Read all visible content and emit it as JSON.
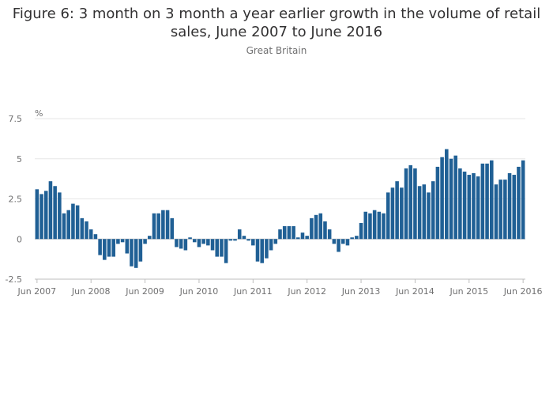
{
  "chart_data": {
    "type": "bar",
    "title": "Figure 6: 3 month on 3 month a year earlier growth in the volume of retail sales, June 2007 to June 2016",
    "subtitle": "Great Britain",
    "ylabel": "%",
    "xlabel": "",
    "ylim": [
      -2.5,
      7.5
    ],
    "yticks": [
      -2.5,
      0,
      2.5,
      5,
      7.5
    ],
    "ytick_labels": [
      "-2.5",
      "0",
      "2.5",
      "5",
      "7.5"
    ],
    "xtick_labels": [
      "Jun 2007",
      "Jun 2008",
      "Jun 2009",
      "Jun 2010",
      "Jun 2011",
      "Jun 2012",
      "Jun 2013",
      "Jun 2014",
      "Jun 2015",
      "Jun 2016"
    ],
    "bar_color": "#206095",
    "grid": true,
    "series": [
      {
        "name": "3 month on 3 month a year earlier growth",
        "values": [
          3.1,
          2.8,
          3.0,
          3.6,
          3.3,
          2.9,
          1.6,
          1.8,
          2.2,
          2.1,
          1.3,
          1.1,
          0.6,
          0.3,
          -1.0,
          -1.3,
          -1.1,
          -1.1,
          -0.3,
          -0.2,
          -0.9,
          -1.7,
          -1.8,
          -1.4,
          -0.3,
          0.2,
          1.6,
          1.6,
          1.8,
          1.8,
          1.3,
          -0.5,
          -0.6,
          -0.7,
          0.1,
          -0.2,
          -0.5,
          -0.3,
          -0.4,
          -0.7,
          -1.1,
          -1.1,
          -1.5,
          -0.1,
          -0.1,
          0.6,
          0.2,
          -0.1,
          -0.4,
          -1.4,
          -1.5,
          -1.2,
          -0.7,
          -0.3,
          0.6,
          0.8,
          0.8,
          0.8,
          0.1,
          0.4,
          0.2,
          1.3,
          1.5,
          1.6,
          1.1,
          0.6,
          -0.3,
          -0.8,
          -0.3,
          -0.4,
          0.1,
          0.2,
          1.0,
          1.7,
          1.6,
          1.8,
          1.7,
          1.6,
          2.9,
          3.2,
          3.6,
          3.2,
          4.4,
          4.6,
          4.4,
          3.3,
          3.4,
          2.9,
          3.6,
          4.5,
          5.1,
          5.6,
          5.0,
          5.2,
          4.4,
          4.2,
          4.0,
          4.1,
          3.9,
          4.7,
          4.7,
          4.9,
          3.4,
          3.7,
          3.7,
          4.1,
          4.0,
          4.5,
          4.9
        ]
      }
    ]
  }
}
